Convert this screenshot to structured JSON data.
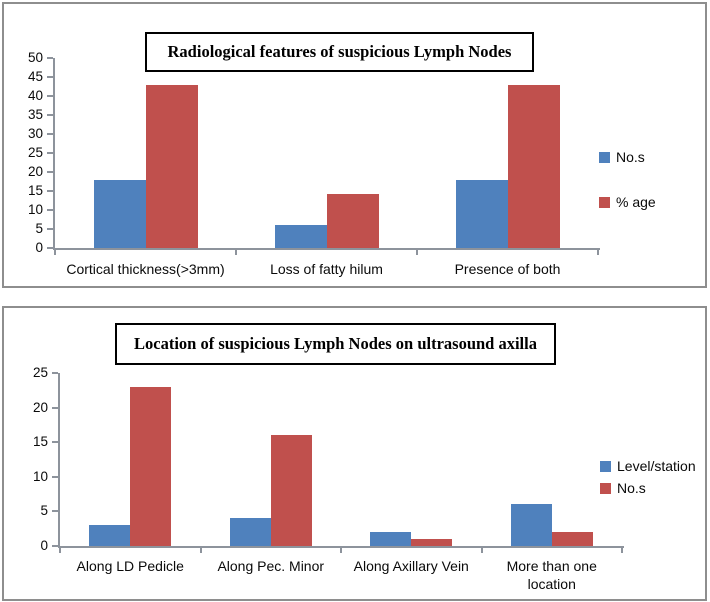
{
  "figure": {
    "description_colors": {
      "series_blue": "#4F81BD",
      "series_red": "#C0504D",
      "panel_border": "#8e8e8e",
      "axis_gray": "#8d939c"
    }
  },
  "chart_data": [
    {
      "type": "bar",
      "title": "Radiological features of suspicious Lymph Nodes",
      "categories": [
        "Cortical thickness(>3mm)",
        "Loss of fatty hilum",
        "Presence of both"
      ],
      "series": [
        {
          "name": "No.s",
          "color": "#4F81BD",
          "values": [
            18,
            6,
            18
          ]
        },
        {
          "name": "% age",
          "color": "#C0504D",
          "values": [
            43,
            14.3,
            43
          ]
        }
      ],
      "ylim": [
        0,
        50
      ],
      "ytick_step": 5,
      "grid": false,
      "legend_position": "right"
    },
    {
      "type": "bar",
      "title": "Location of suspicious Lymph Nodes on ultrasound axilla",
      "categories": [
        "Along LD Pedicle",
        "Along Pec. Minor",
        "Along Axillary Vein",
        "More than one location"
      ],
      "series": [
        {
          "name": "Level/station",
          "color": "#4F81BD",
          "values": [
            3,
            4,
            2,
            6
          ]
        },
        {
          "name": "No.s",
          "color": "#C0504D",
          "values": [
            23,
            16,
            1,
            2
          ]
        }
      ],
      "ylim": [
        0,
        25
      ],
      "ytick_step": 5,
      "grid": false,
      "legend_position": "right"
    }
  ]
}
